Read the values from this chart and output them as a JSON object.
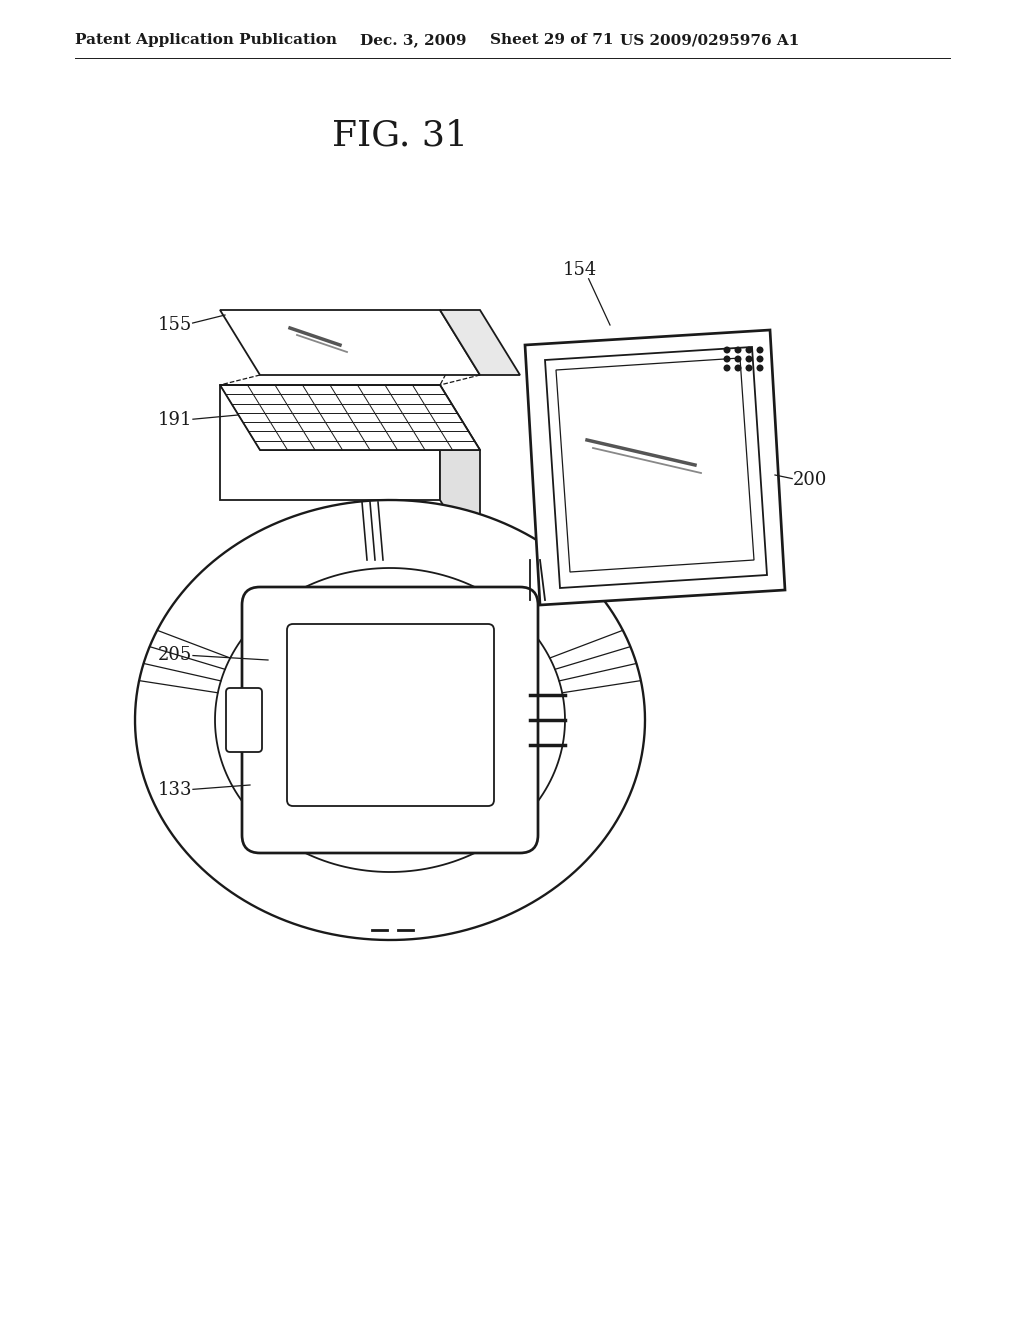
{
  "bg_color": "#ffffff",
  "line_color": "#1a1a1a",
  "header_text": "Patent Application Publication",
  "header_date": "Dec. 3, 2009",
  "header_sheet": "Sheet 29 of 71",
  "header_patent": "US 2009/0295976 A1",
  "fig_title": "FIG. 31",
  "lw": 1.3,
  "header_fontsize": 11,
  "title_fontsize": 26,
  "label_fontsize": 13
}
